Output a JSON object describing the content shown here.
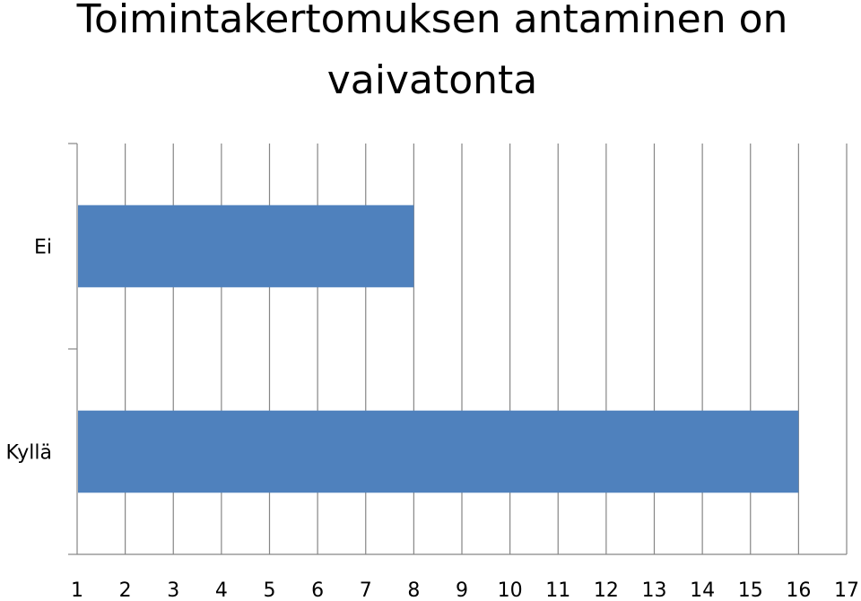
{
  "chart_data": {
    "type": "bar",
    "orientation": "horizontal",
    "title_lines": [
      "Toimintakertomuksen antaminen on",
      "vaivatonta"
    ],
    "categories": [
      "Ei",
      "Kyllä"
    ],
    "values": [
      8,
      16
    ],
    "x_ticks": [
      "1",
      "2",
      "3",
      "4",
      "5",
      "6",
      "7",
      "8",
      "9",
      "10",
      "11",
      "12",
      "13",
      "14",
      "15",
      "16",
      "17"
    ],
    "xlim": [
      1,
      17
    ],
    "grid": true,
    "bar_color": "#4f81bd",
    "grid_color": "#868686"
  }
}
